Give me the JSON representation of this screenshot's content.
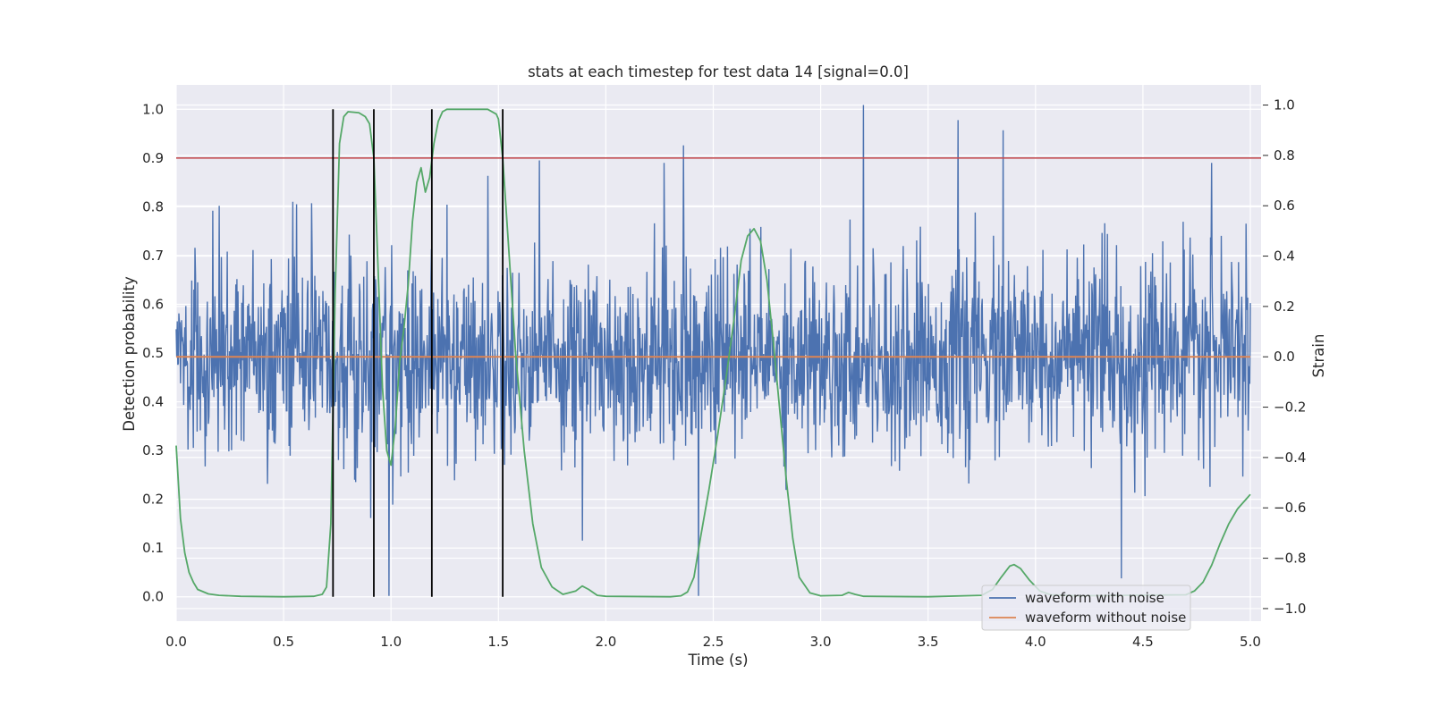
{
  "chart_data": {
    "type": "line",
    "title": "stats at each timestep for test data 14 [signal=0.0]",
    "xlabel": "Time (s)",
    "ylabel": "Detection probability",
    "ylabel_right": "Strain",
    "xlim": [
      0.0,
      5.05
    ],
    "ylim": [
      -0.05,
      1.05
    ],
    "ylim_right": [
      -1.05,
      1.08
    ],
    "x_ticks": [
      "0.0",
      "0.5",
      "1.0",
      "1.5",
      "2.0",
      "2.5",
      "3.0",
      "3.5",
      "4.0",
      "4.5",
      "5.0"
    ],
    "y_ticks": [
      "0.0",
      "0.1",
      "0.2",
      "0.3",
      "0.4",
      "0.5",
      "0.6",
      "0.7",
      "0.8",
      "0.9",
      "1.0"
    ],
    "y_ticks_right": [
      "−1.0",
      "−0.8",
      "−0.6",
      "−0.4",
      "−0.2",
      "0.0",
      "0.2",
      "0.4",
      "0.6",
      "0.8",
      "1.0"
    ],
    "grid": true,
    "legend_position": "lower-right",
    "colors": {
      "background": "#eaeaf2",
      "grid": "#ffffff",
      "noisy": "#4c72b0",
      "clean": "#dd8452",
      "probability": "#55a868",
      "threshold": "#c44e52",
      "markers": "#000000"
    },
    "threshold": 0.9,
    "event_markers": [
      0.73,
      0.92,
      1.19,
      1.52
    ],
    "series": [
      {
        "name": "waveform with noise",
        "axis": "right",
        "kind": "noise",
        "count": 2000,
        "seed": 14,
        "std": 0.19,
        "spikes": [
          {
            "x": 0.17,
            "y": 0.58
          },
          {
            "x": 0.2,
            "y": 0.6
          },
          {
            "x": 0.63,
            "y": 0.61
          },
          {
            "x": 0.99,
            "y": -0.95
          },
          {
            "x": 1.69,
            "y": 0.78
          },
          {
            "x": 1.89,
            "y": -0.73
          },
          {
            "x": 2.27,
            "y": 0.77
          },
          {
            "x": 2.36,
            "y": 0.84
          },
          {
            "x": 2.43,
            "y": -0.95
          },
          {
            "x": 3.2,
            "y": 1.0
          },
          {
            "x": 3.64,
            "y": 0.94
          },
          {
            "x": 3.85,
            "y": 0.9
          },
          {
            "x": 4.4,
            "y": -0.88
          },
          {
            "x": 4.82,
            "y": 0.77
          }
        ]
      },
      {
        "name": "waveform without noise",
        "axis": "right",
        "x": [
          0,
          5
        ],
        "y": [
          0.0,
          0.0
        ]
      },
      {
        "name": "",
        "axis": "left",
        "x": [
          0.0,
          0.02,
          0.04,
          0.06,
          0.08,
          0.1,
          0.15,
          0.2,
          0.3,
          0.5,
          0.64,
          0.68,
          0.7,
          0.72,
          0.74,
          0.76,
          0.78,
          0.8,
          0.85,
          0.88,
          0.9,
          0.92,
          0.94,
          0.96,
          0.98,
          1.0,
          1.02,
          1.04,
          1.06,
          1.08,
          1.1,
          1.12,
          1.14,
          1.16,
          1.18,
          1.2,
          1.22,
          1.24,
          1.26,
          1.3,
          1.45,
          1.49,
          1.5,
          1.52,
          1.55,
          1.58,
          1.62,
          1.66,
          1.7,
          1.75,
          1.8,
          1.86,
          1.89,
          1.92,
          1.96,
          2.0,
          2.3,
          2.35,
          2.38,
          2.41,
          2.44,
          2.48,
          2.52,
          2.56,
          2.6,
          2.63,
          2.66,
          2.69,
          2.72,
          2.75,
          2.78,
          2.81,
          2.84,
          2.87,
          2.9,
          2.95,
          3.0,
          3.1,
          3.13,
          3.16,
          3.2,
          3.5,
          3.75,
          3.8,
          3.84,
          3.88,
          3.9,
          3.93,
          3.97,
          4.02,
          4.07,
          4.2,
          4.7,
          4.74,
          4.78,
          4.82,
          4.86,
          4.9,
          4.94,
          4.98,
          5.0
        ],
        "y": [
          0.31,
          0.16,
          0.09,
          0.05,
          0.03,
          0.015,
          0.006,
          0.003,
          0.001,
          0.0,
          0.001,
          0.005,
          0.02,
          0.15,
          0.62,
          0.93,
          0.985,
          0.995,
          0.993,
          0.985,
          0.97,
          0.9,
          0.67,
          0.43,
          0.3,
          0.27,
          0.35,
          0.48,
          0.55,
          0.64,
          0.77,
          0.85,
          0.88,
          0.83,
          0.86,
          0.93,
          0.975,
          0.995,
          1.0,
          1.0,
          1.0,
          0.99,
          0.98,
          0.9,
          0.7,
          0.5,
          0.3,
          0.15,
          0.06,
          0.02,
          0.005,
          0.012,
          0.022,
          0.015,
          0.003,
          0.001,
          0.0,
          0.002,
          0.01,
          0.04,
          0.12,
          0.22,
          0.33,
          0.45,
          0.58,
          0.69,
          0.74,
          0.755,
          0.73,
          0.65,
          0.52,
          0.38,
          0.24,
          0.12,
          0.04,
          0.008,
          0.002,
          0.003,
          0.009,
          0.005,
          0.001,
          0.0,
          0.003,
          0.015,
          0.04,
          0.063,
          0.066,
          0.058,
          0.035,
          0.012,
          0.004,
          0.002,
          0.004,
          0.012,
          0.03,
          0.065,
          0.11,
          0.15,
          0.18,
          0.2,
          0.21
        ]
      }
    ]
  }
}
